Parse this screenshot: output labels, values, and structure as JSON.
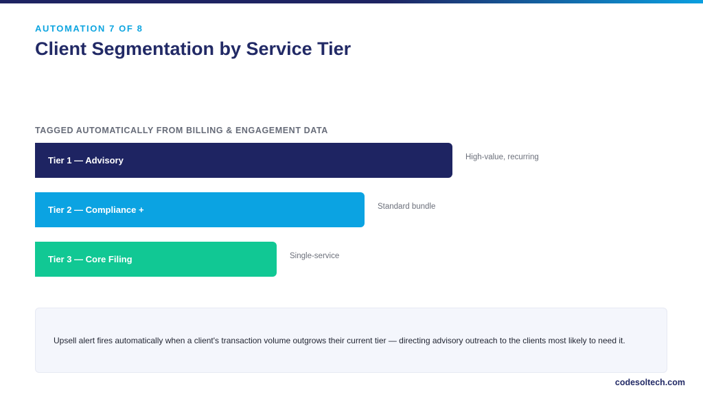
{
  "header": {
    "eyebrow": "AUTOMATION 7 OF 8",
    "title": "Client Segmentation by Service Tier"
  },
  "section": {
    "label": "TAGGED AUTOMATICALLY FROM BILLING & ENGAGEMENT DATA"
  },
  "tiers": [
    {
      "label": "Tier 1 — Advisory",
      "note": "High-value, recurring",
      "color": "#1e2462"
    },
    {
      "label": "Tier 2 — Compliance +",
      "note": "Standard bundle",
      "color": "#0ba3e2"
    },
    {
      "label": "Tier 3 — Core Filing",
      "note": "Single-service",
      "color": "#11c894"
    }
  ],
  "callout": {
    "text": "Upsell alert fires automatically when a client's transaction volume outgrows their current tier — directing advisory outreach to the clients most likely to need it."
  },
  "footer": {
    "brand": "codesoltech.com"
  },
  "colors": {
    "accent": "#0ea5e0",
    "title": "#222a66"
  }
}
